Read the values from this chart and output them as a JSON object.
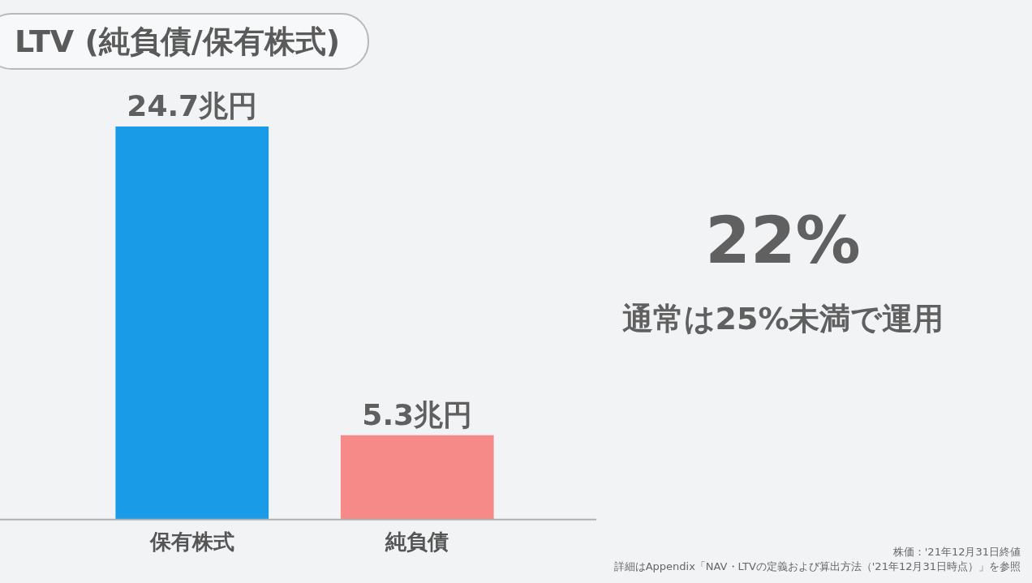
{
  "chart_data": {
    "type": "bar",
    "title": "LTV (純負債/保有株式)",
    "categories": [
      "保有株式",
      "純負債"
    ],
    "values": [
      24.7,
      5.3
    ],
    "colors": [
      "#1a9be8",
      "#f58a88"
    ],
    "value_labels": [
      "24.7兆円",
      "5.3兆円"
    ],
    "grid": false,
    "legend": false,
    "annotations": [
      "22%",
      "通常は25%未満で運用",
      "株価：'21年12月31日終値",
      "詳細はAppendix「NAV・LTVの定義および算出方法（'21年12月31日時点）」を参照"
    ]
  }
}
